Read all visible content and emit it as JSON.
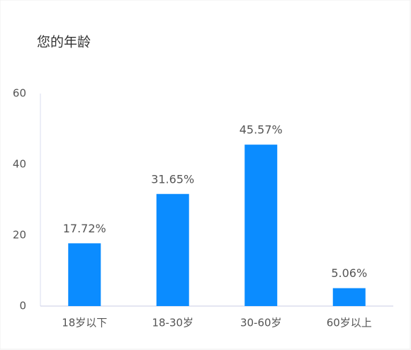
{
  "chart_data": {
    "type": "bar",
    "title": "您的年龄",
    "categories": [
      "18岁以下",
      "18-30岁",
      "30-60岁",
      "60岁以上"
    ],
    "values": [
      17.72,
      31.65,
      45.57,
      5.06
    ],
    "value_labels": [
      "17.72%",
      "31.65%",
      "45.57%",
      "5.06%"
    ],
    "color": "#0b8cff",
    "ylim": [
      0,
      60
    ],
    "yticks": [
      0,
      20,
      40,
      60
    ],
    "grid": false
  }
}
